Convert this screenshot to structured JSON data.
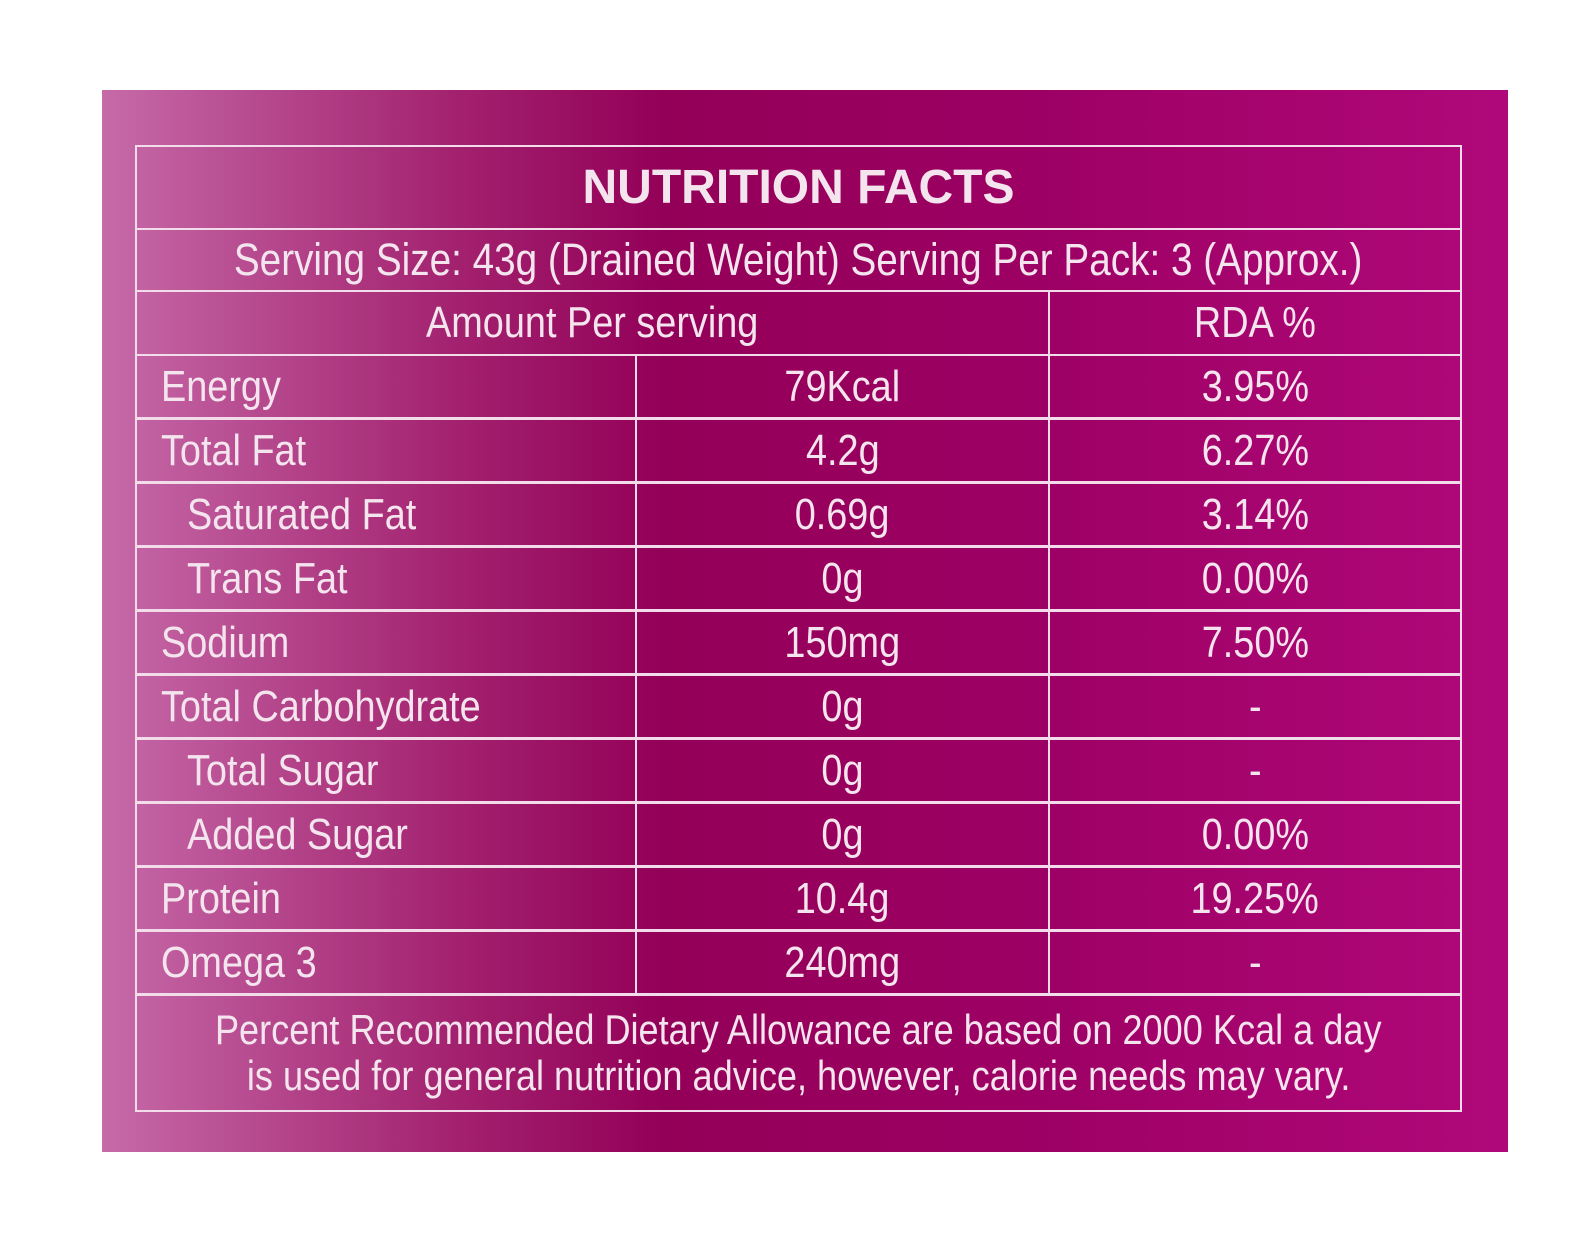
{
  "title": "NUTRITION FACTS",
  "serving": "Serving Size: 43g (Drained Weight) Serving Per Pack: 3 (Approx.)",
  "header": [
    "Amount Per serving",
    "RDA %"
  ],
  "rows": [
    [
      "Energy",
      "79Kcal",
      "3.95%"
    ],
    [
      "Total Fat",
      "4.2g",
      "6.27%"
    ],
    [
      "Saturated Fat",
      "0.69g",
      "3.14%"
    ],
    [
      "Trans Fat",
      "0g",
      "0.00%"
    ],
    [
      "Sodium",
      "150mg",
      "7.50%"
    ],
    [
      "Total Carbohydrate",
      "0g",
      "-"
    ],
    [
      "Total Sugar",
      "0g",
      "-"
    ],
    [
      "Added Sugar",
      "0g",
      "0.00%"
    ],
    [
      "Protein",
      "10.4g",
      "19.25%"
    ],
    [
      "Omega 3",
      "240mg",
      "-"
    ]
  ],
  "footer": [
    "Percent Recommended Dietary Allowance are based on 2000 Kcal a day",
    "is used for general nutrition advice, however, calorie needs may vary."
  ]
}
